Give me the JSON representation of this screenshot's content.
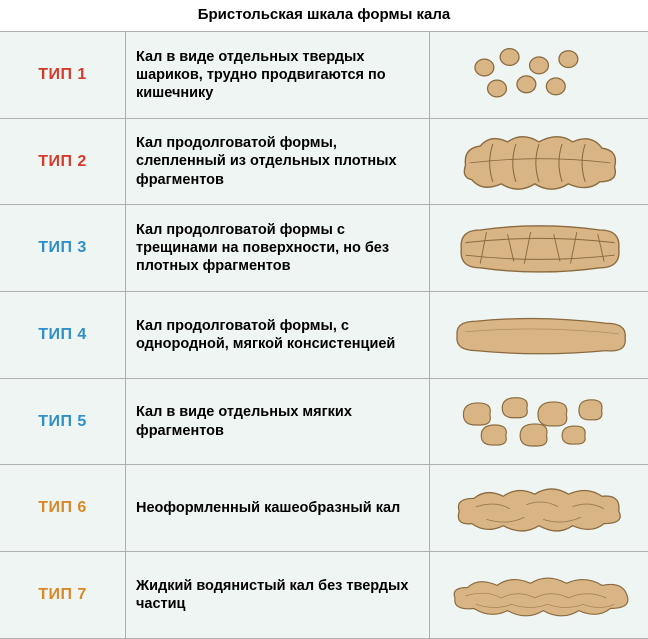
{
  "title": "Бристольская шкала формы кала",
  "border_color": "#b0b0b0",
  "cell_bg": "#eef5f2",
  "stool_fill": "#d9b484",
  "stool_stroke": "#8a6a3e",
  "rows": [
    {
      "type_label": "ТИП 1",
      "type_color": "#d63a2a",
      "description": "Кал в виде отдельных твердых шариков, трудно продвигаются по кишечнику",
      "shape": "pellets"
    },
    {
      "type_label": "ТИП 2",
      "type_color": "#d63a2a",
      "description": "Кал продолговатой формы, слепленный из отдельных плотных фрагментов",
      "shape": "lumpy"
    },
    {
      "type_label": "ТИП 3",
      "type_color": "#2f8fc9",
      "description": "Кал продолговатой формы с трещинами на поверхности, но без плотных фрагментов",
      "shape": "cracked"
    },
    {
      "type_label": "ТИП 4",
      "type_color": "#2f8fc9",
      "description": "Кал продолговатой формы, с однородной, мягкой консистенцией",
      "shape": "smooth"
    },
    {
      "type_label": "ТИП 5",
      "type_color": "#2f8fc9",
      "description": "Кал в виде отдельных мягких фрагментов",
      "shape": "blobs"
    },
    {
      "type_label": "ТИП 6",
      "type_color": "#d98727",
      "description": "Неоформленный кашеобразный кал",
      "shape": "mushy"
    },
    {
      "type_label": "ТИП 7",
      "type_color": "#d98727",
      "description": "Жидкий водянистый кал без твердых частиц",
      "shape": "liquid"
    }
  ]
}
